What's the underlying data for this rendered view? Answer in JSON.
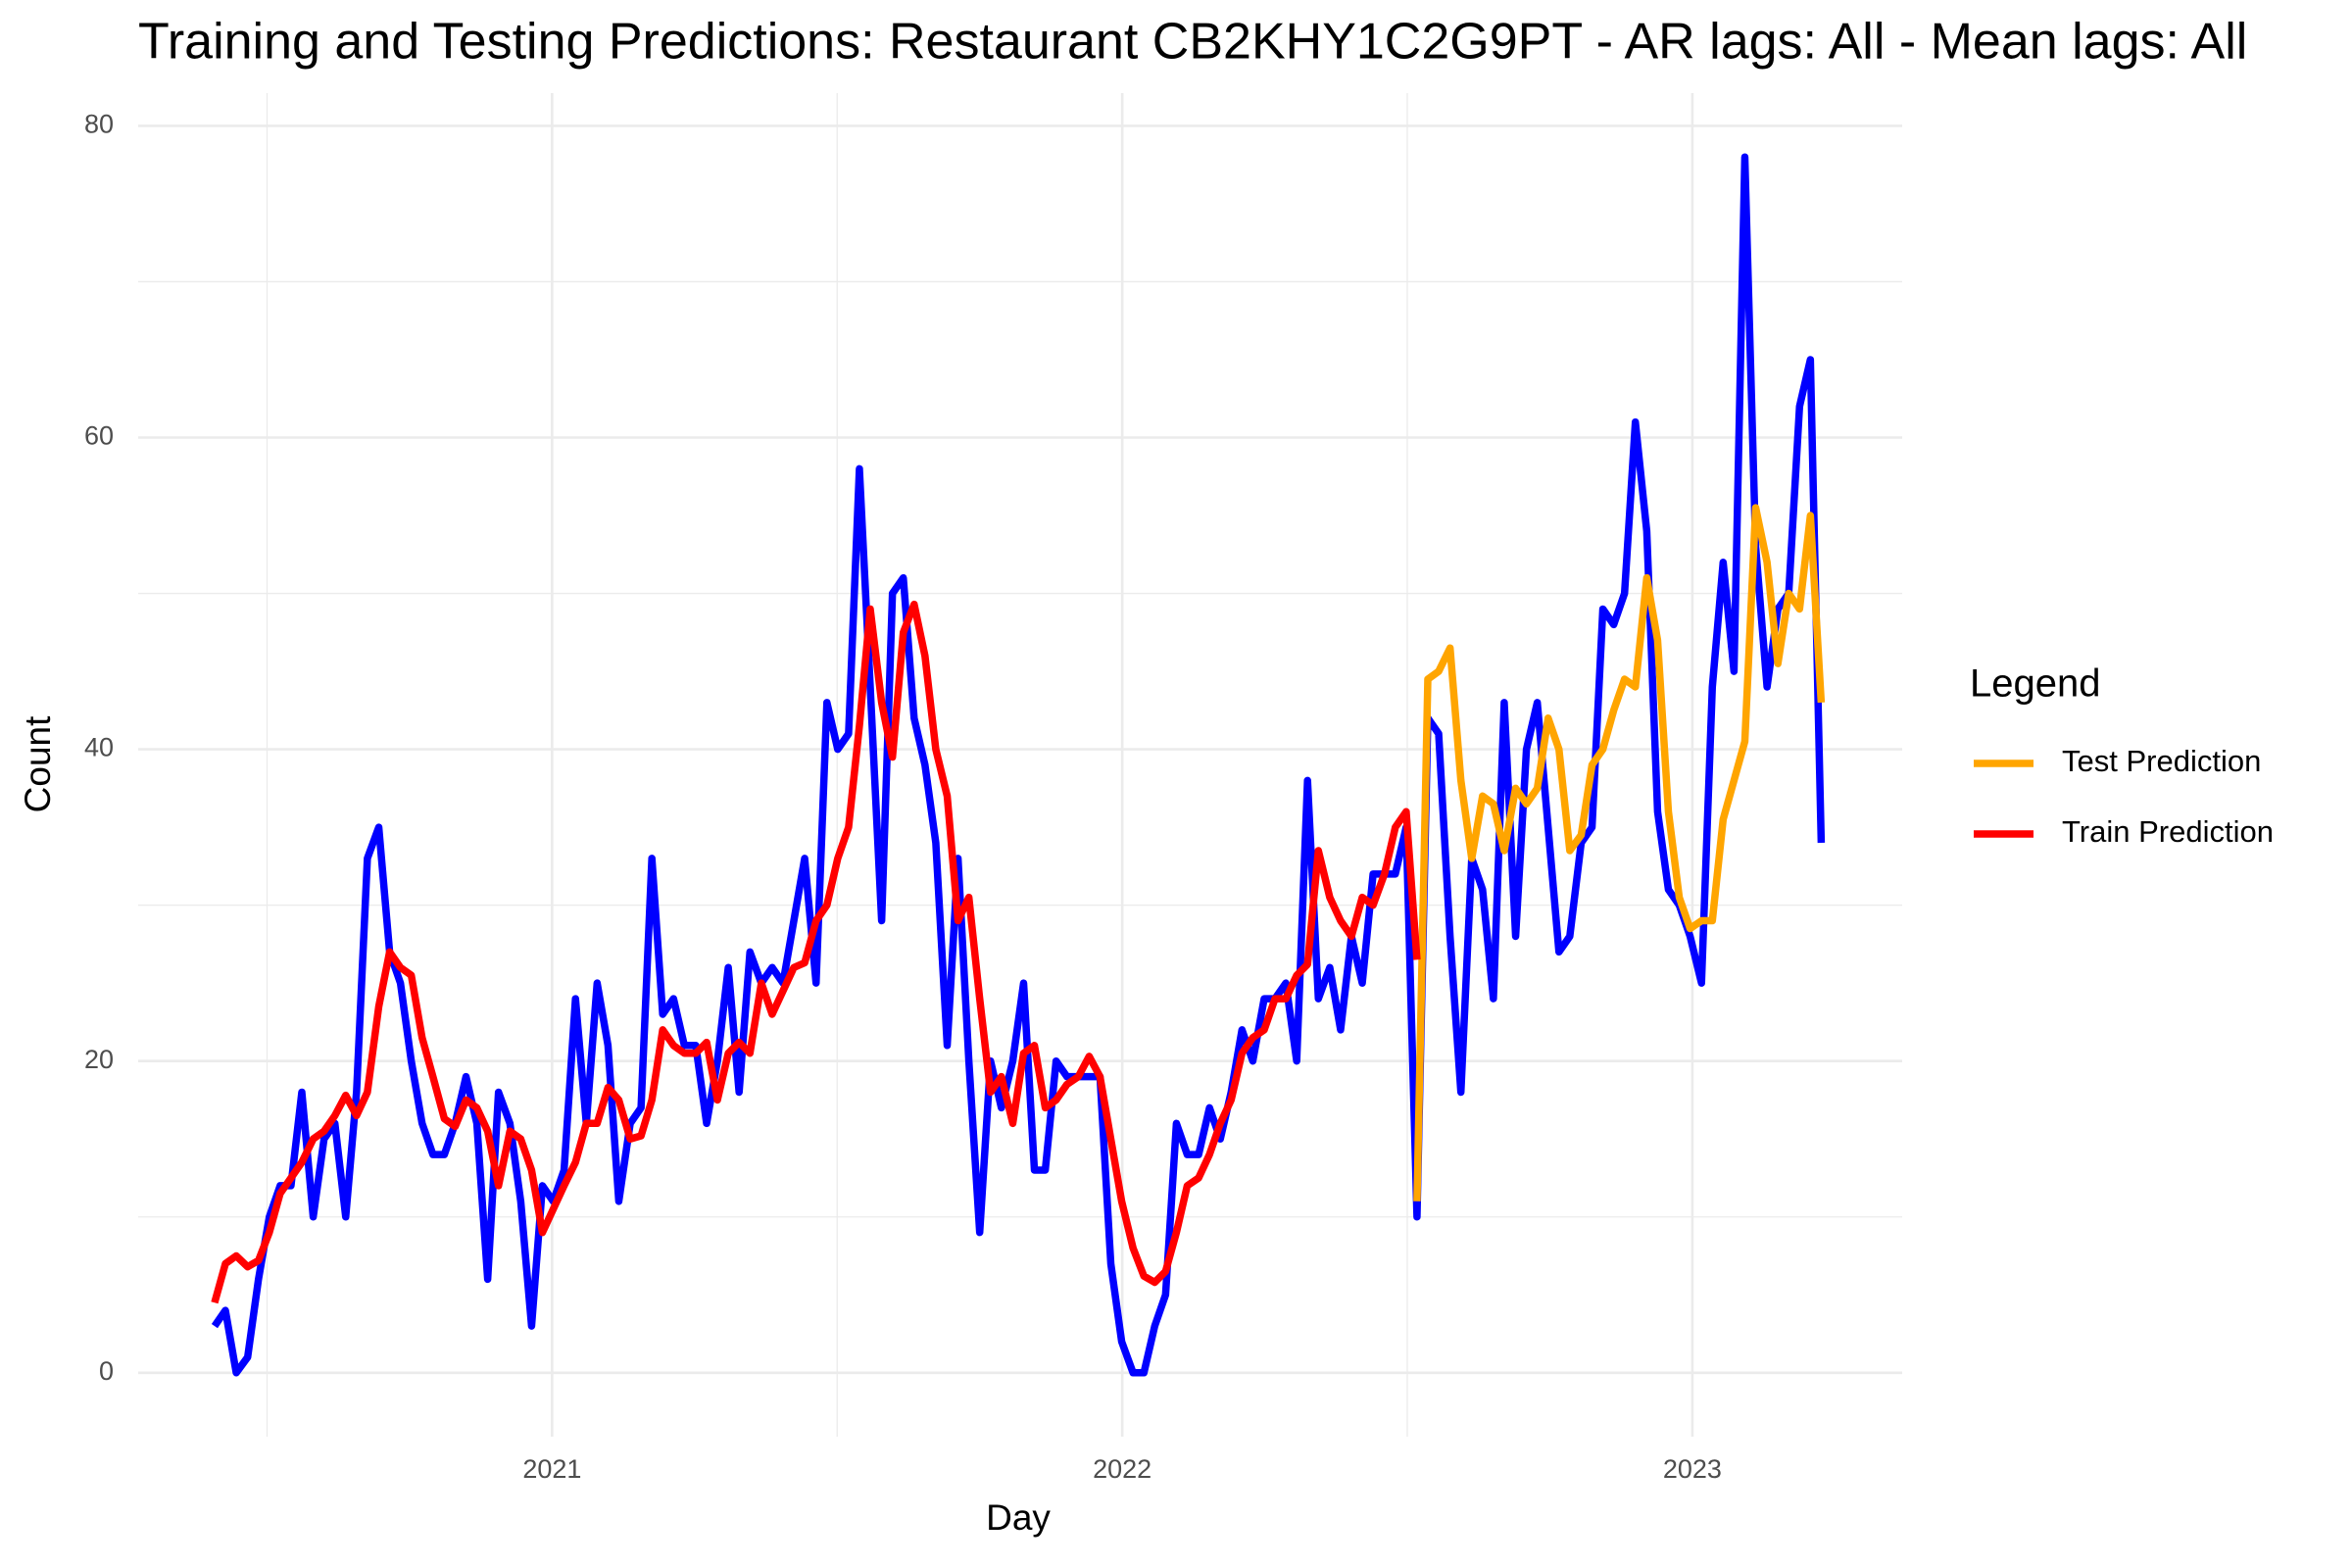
{
  "chart_data": {
    "type": "line",
    "title": "Training and Testing Predictions: Restaurant CB2KHY1C2G9PT - AR lags: All - Mean lags: All",
    "x_label": "Day",
    "y_label": "Count",
    "legend_title": "Legend",
    "legend_position": "right",
    "grid": true,
    "minor_grid": true,
    "xlim": [
      2020.274,
      2023.368
    ],
    "ylim": [
      -4.1,
      82.1
    ],
    "xticks": [
      {
        "value": 2021,
        "label": "2021"
      },
      {
        "value": 2022,
        "label": "2022"
      },
      {
        "value": 2023,
        "label": "2023"
      }
    ],
    "yticks": [
      0,
      20,
      40,
      60,
      80
    ],
    "x": [
      2020.408,
      2020.427,
      2020.446,
      2020.466,
      2020.485,
      2020.504,
      2020.523,
      2020.542,
      2020.561,
      2020.581,
      2020.6,
      2020.619,
      2020.638,
      2020.657,
      2020.676,
      2020.696,
      2020.715,
      2020.734,
      2020.753,
      2020.772,
      2020.791,
      2020.811,
      2020.83,
      2020.849,
      2020.868,
      2020.887,
      2020.906,
      2020.926,
      2020.945,
      2020.964,
      2020.983,
      2021.002,
      2021.021,
      2021.041,
      2021.06,
      2021.079,
      2021.098,
      2021.117,
      2021.137,
      2021.156,
      2021.175,
      2021.194,
      2021.213,
      2021.232,
      2021.252,
      2021.271,
      2021.29,
      2021.309,
      2021.328,
      2021.347,
      2021.367,
      2021.386,
      2021.405,
      2021.424,
      2021.443,
      2021.463,
      2021.482,
      2021.501,
      2021.52,
      2021.539,
      2021.558,
      2021.578,
      2021.597,
      2021.616,
      2021.635,
      2021.654,
      2021.673,
      2021.693,
      2021.712,
      2021.731,
      2021.75,
      2021.769,
      2021.788,
      2021.808,
      2021.827,
      2021.846,
      2021.865,
      2021.884,
      2021.903,
      2021.923,
      2021.942,
      2021.961,
      2021.98,
      2021.999,
      2022.019,
      2022.038,
      2022.057,
      2022.076,
      2022.095,
      2022.114,
      2022.134,
      2022.153,
      2022.172,
      2022.191,
      2022.21,
      2022.229,
      2022.249,
      2022.268,
      2022.287,
      2022.306,
      2022.325,
      2022.344,
      2022.364,
      2022.383,
      2022.402,
      2022.421,
      2022.44,
      2022.46,
      2022.479,
      2022.498,
      2022.517,
      2022.536,
      2022.555,
      2022.575,
      2022.594,
      2022.613,
      2022.632,
      2022.651,
      2022.67,
      2022.69,
      2022.709,
      2022.728,
      2022.747,
      2022.766,
      2022.785,
      2022.805,
      2022.824,
      2022.843,
      2022.862,
      2022.881,
      2022.9,
      2022.92,
      2022.939,
      2022.958,
      2022.977,
      2022.996,
      2023.016,
      2023.035,
      2023.054,
      2023.073,
      2023.092,
      2023.111,
      2023.131,
      2023.15,
      2023.169,
      2023.188,
      2023.207,
      2023.226
    ],
    "series": [
      {
        "color": "#0000ff",
        "values": [
          3,
          4,
          0,
          1,
          6,
          10,
          12,
          12,
          18,
          10,
          15,
          16,
          10,
          18,
          33,
          35,
          27,
          25,
          20,
          16,
          14,
          14,
          16,
          19,
          16,
          6,
          18,
          16,
          11,
          3,
          12,
          11,
          13,
          24,
          16,
          25,
          21,
          11,
          16,
          17,
          33,
          23,
          24,
          21,
          21,
          16,
          20,
          26,
          18,
          27,
          25,
          26,
          25,
          29,
          33,
          25,
          43,
          40,
          41,
          58,
          44,
          29,
          50,
          51,
          42,
          39,
          34,
          21,
          33,
          20,
          9,
          20,
          17,
          20,
          25,
          13,
          13,
          20,
          19,
          19,
          19,
          19,
          7,
          2,
          0,
          0,
          3,
          5,
          16,
          14,
          14,
          17,
          15,
          18,
          22,
          20,
          24,
          24,
          25,
          20,
          38,
          24,
          26,
          22,
          28,
          25,
          32,
          32,
          32,
          35,
          10,
          42,
          41,
          28,
          18,
          33,
          31,
          24,
          43,
          28,
          40,
          43,
          35,
          27,
          28,
          34,
          35,
          49,
          48,
          50,
          61,
          54,
          36,
          31,
          30,
          28,
          25,
          44,
          52,
          45,
          78,
          53,
          44,
          49,
          50,
          62,
          65,
          34
        ]
      },
      {
        "name": "Test Prediction",
        "color": "#ffa500",
        "values": [
          null,
          null,
          null,
          null,
          null,
          null,
          null,
          null,
          null,
          null,
          null,
          null,
          null,
          null,
          null,
          null,
          null,
          null,
          null,
          null,
          null,
          null,
          null,
          null,
          null,
          null,
          null,
          null,
          null,
          null,
          null,
          null,
          null,
          null,
          null,
          null,
          null,
          null,
          null,
          null,
          null,
          null,
          null,
          null,
          null,
          null,
          null,
          null,
          null,
          null,
          null,
          null,
          null,
          null,
          null,
          null,
          null,
          null,
          null,
          null,
          null,
          null,
          null,
          null,
          null,
          null,
          null,
          null,
          null,
          null,
          null,
          null,
          null,
          null,
          null,
          null,
          null,
          null,
          null,
          null,
          null,
          null,
          null,
          null,
          null,
          null,
          null,
          null,
          null,
          null,
          null,
          null,
          null,
          null,
          null,
          null,
          null,
          null,
          null,
          null,
          null,
          null,
          null,
          null,
          null,
          null,
          null,
          null,
          null,
          null,
          11,
          44.5,
          45,
          46.5,
          38,
          33,
          37,
          36.5,
          33.5,
          37.5,
          36.5,
          37.5,
          42,
          40,
          33.5,
          34.5,
          39,
          40,
          42.5,
          44.5,
          44,
          51,
          47,
          36,
          30.5,
          28.5,
          29,
          29,
          35.5,
          38,
          40.5,
          55.5,
          52,
          45.5,
          50,
          49,
          55,
          43
        ]
      },
      {
        "name": "Train Prediction",
        "color": "#ff0000",
        "values": [
          4.5,
          7,
          7.5,
          6.8,
          7.2,
          9,
          11.5,
          12.5,
          13.5,
          15,
          15.5,
          16.5,
          17.8,
          16.5,
          18,
          23.5,
          27,
          26,
          25.5,
          21.5,
          19,
          16.3,
          15.8,
          17.5,
          17,
          15.5,
          12,
          15.5,
          15,
          13,
          9,
          10.5,
          12,
          13.5,
          16,
          16,
          18.3,
          17.5,
          15,
          15.2,
          17.5,
          22,
          21,
          20.5,
          20.5,
          21.2,
          17.5,
          20.5,
          21.2,
          20.5,
          25,
          23,
          24.5,
          26,
          26.3,
          29,
          30,
          33,
          35,
          41.5,
          49,
          43,
          39.5,
          47.5,
          49.3,
          46,
          40,
          37,
          29,
          30.5,
          24,
          18,
          19,
          16,
          20.5,
          21,
          17,
          17.5,
          18.5,
          19,
          20.3,
          19,
          15,
          11,
          8,
          6.2,
          5.8,
          6.5,
          9,
          12,
          12.5,
          14,
          16,
          17.5,
          20.5,
          21.5,
          22,
          24,
          24,
          25.5,
          26.2,
          33.5,
          30.5,
          29,
          28,
          30.5,
          30,
          32,
          35,
          36,
          26.5,
          null,
          null,
          null,
          null,
          null,
          null,
          null,
          null,
          null,
          null,
          null,
          null,
          null,
          null,
          null,
          null,
          null,
          null,
          null,
          null,
          null,
          null,
          null,
          null,
          null,
          null,
          null,
          null,
          null,
          null,
          null,
          null,
          null,
          null,
          null,
          null,
          null
        ]
      }
    ]
  }
}
